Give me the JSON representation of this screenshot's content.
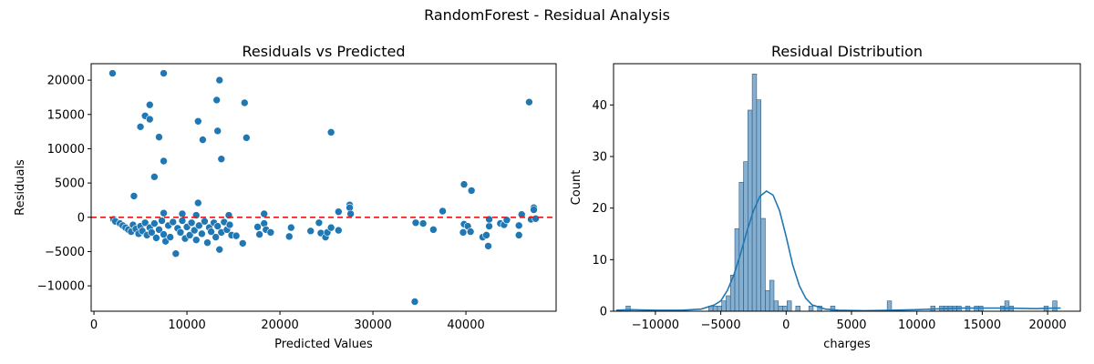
{
  "figure": {
    "suptitle": "RandomForest - Residual Analysis"
  },
  "colors": {
    "point": "#1f77b4",
    "zero_line": "#e41a1c",
    "bar_fill": "#86aecf",
    "kde": "#1f77b4"
  },
  "chart_data": [
    {
      "type": "scatter",
      "title": "Residuals vs Predicted",
      "xlabel": "Predicted Values",
      "ylabel": "Residuals",
      "xlim": [
        -300,
        49700
      ],
      "ylim": [
        -13700,
        22400
      ],
      "xticks": [
        0,
        10000,
        20000,
        30000,
        40000
      ],
      "xtick_labels": [
        "0",
        "10000",
        "20000",
        "30000",
        "40000"
      ],
      "yticks": [
        -10000,
        -5000,
        0,
        5000,
        10000,
        15000,
        20000
      ],
      "ytick_labels": [
        "−10000",
        "−5000",
        "0",
        "5000",
        "10000",
        "15000",
        "20000"
      ],
      "reference_line": {
        "y": 0,
        "style": "dashed"
      },
      "points": [
        [
          2000,
          21000
        ],
        [
          7500,
          21000
        ],
        [
          13500,
          20000
        ],
        [
          13200,
          17100
        ],
        [
          6000,
          16400
        ],
        [
          16200,
          16700
        ],
        [
          46800,
          16800
        ],
        [
          5500,
          14800
        ],
        [
          6000,
          14300
        ],
        [
          11200,
          14000
        ],
        [
          5000,
          13200
        ],
        [
          13300,
          12600
        ],
        [
          25500,
          12400
        ],
        [
          7000,
          11700
        ],
        [
          16400,
          11600
        ],
        [
          11700,
          11300
        ],
        [
          13700,
          8500
        ],
        [
          7500,
          8200
        ],
        [
          6500,
          5900
        ],
        [
          4300,
          3100
        ],
        [
          39800,
          4800
        ],
        [
          40600,
          3900
        ],
        [
          11200,
          2100
        ],
        [
          27500,
          1800
        ],
        [
          27500,
          1400
        ],
        [
          47300,
          1400
        ],
        [
          47300,
          1100
        ],
        [
          37500,
          900
        ],
        [
          26300,
          800
        ],
        [
          18300,
          500
        ],
        [
          27600,
          500
        ],
        [
          46000,
          400
        ],
        [
          7500,
          600
        ],
        [
          9500,
          500
        ],
        [
          11000,
          300
        ],
        [
          14500,
          300
        ],
        [
          2100,
          -300
        ],
        [
          2300,
          -600
        ],
        [
          2800,
          -900
        ],
        [
          3100,
          -1200
        ],
        [
          3400,
          -1500
        ],
        [
          3700,
          -1800
        ],
        [
          4000,
          -2100
        ],
        [
          4200,
          -1100
        ],
        [
          4500,
          -1700
        ],
        [
          4800,
          -2400
        ],
        [
          5000,
          -1300
        ],
        [
          5200,
          -2000
        ],
        [
          5500,
          -800
        ],
        [
          5700,
          -2600
        ],
        [
          6000,
          -1500
        ],
        [
          6200,
          -2200
        ],
        [
          6500,
          -900
        ],
        [
          6700,
          -3000
        ],
        [
          7000,
          -1800
        ],
        [
          7300,
          -500
        ],
        [
          7500,
          -2500
        ],
        [
          7700,
          -3500
        ],
        [
          8000,
          -1200
        ],
        [
          8200,
          -2900
        ],
        [
          8500,
          -700
        ],
        [
          8800,
          -5300
        ],
        [
          9000,
          -1600
        ],
        [
          9300,
          -2200
        ],
        [
          9500,
          -500
        ],
        [
          9800,
          -3100
        ],
        [
          10000,
          -1400
        ],
        [
          10300,
          -2600
        ],
        [
          10500,
          -800
        ],
        [
          10800,
          -1900
        ],
        [
          11000,
          -3300
        ],
        [
          11300,
          -1200
        ],
        [
          11600,
          -2400
        ],
        [
          11900,
          -600
        ],
        [
          12200,
          -3700
        ],
        [
          12400,
          -1500
        ],
        [
          12600,
          -2100
        ],
        [
          12900,
          -800
        ],
        [
          13100,
          -2900
        ],
        [
          13300,
          -1300
        ],
        [
          13500,
          -4700
        ],
        [
          13700,
          -2200
        ],
        [
          14000,
          -700
        ],
        [
          14300,
          -1800
        ],
        [
          14600,
          -1100
        ],
        [
          14800,
          -2600
        ],
        [
          15300,
          -2700
        ],
        [
          16000,
          -3800
        ],
        [
          17600,
          -1400
        ],
        [
          17800,
          -2500
        ],
        [
          18300,
          -900
        ],
        [
          18500,
          -1800
        ],
        [
          19000,
          -2200
        ],
        [
          21000,
          -2800
        ],
        [
          21200,
          -1500
        ],
        [
          23300,
          -2000
        ],
        [
          24200,
          -800
        ],
        [
          24400,
          -2300
        ],
        [
          24900,
          -2900
        ],
        [
          25100,
          -2200
        ],
        [
          25500,
          -1500
        ],
        [
          26300,
          -1900
        ],
        [
          34500,
          -12300
        ],
        [
          34600,
          -800
        ],
        [
          35400,
          -900
        ],
        [
          36500,
          -1800
        ],
        [
          39700,
          -2200
        ],
        [
          39800,
          -1000
        ],
        [
          40200,
          -1300
        ],
        [
          40500,
          -2100
        ],
        [
          41800,
          -2900
        ],
        [
          42200,
          -2600
        ],
        [
          42400,
          -4200
        ],
        [
          42500,
          -1300
        ],
        [
          42500,
          -300
        ],
        [
          43700,
          -900
        ],
        [
          44100,
          -1100
        ],
        [
          44400,
          -400
        ],
        [
          45700,
          -2600
        ],
        [
          45700,
          -1200
        ],
        [
          47000,
          -300
        ],
        [
          47500,
          -200
        ]
      ]
    },
    {
      "type": "histogram",
      "title": "Residual Distribution",
      "xlabel": "charges",
      "ylabel": "Count",
      "xlim": [
        -13200,
        22500
      ],
      "ylim": [
        0,
        48
      ],
      "xticks": [
        -10000,
        -5000,
        0,
        5000,
        10000,
        15000,
        20000
      ],
      "xtick_labels": [
        "−10000",
        "−5000",
        "0",
        "5000",
        "10000",
        "15000",
        "20000"
      ],
      "yticks": [
        0,
        10,
        20,
        30,
        40
      ],
      "ytick_labels": [
        "0",
        "10",
        "20",
        "30",
        "40"
      ],
      "bin_start": -12250,
      "bin_width": 333,
      "counts": [
        1,
        0,
        0,
        0,
        0,
        0,
        0,
        0,
        0,
        0,
        0,
        0,
        0,
        0,
        0,
        0,
        0,
        0,
        0,
        1,
        1,
        1,
        2,
        3,
        7,
        16,
        25,
        29,
        39,
        46,
        41,
        18,
        4,
        6,
        2,
        1,
        1,
        2,
        0,
        1,
        0,
        0,
        1,
        0,
        1,
        0,
        0,
        1,
        0,
        0,
        0,
        0,
        0,
        0,
        0,
        0,
        0,
        0,
        0,
        0,
        2,
        0,
        0,
        0,
        0,
        0,
        0,
        0,
        0,
        0,
        1,
        0,
        1,
        1,
        1,
        1,
        1,
        0,
        1,
        0,
        1,
        1,
        0,
        0,
        0,
        0,
        1,
        2,
        1,
        0,
        0,
        0,
        0,
        0,
        0,
        0,
        1,
        0,
        2
      ],
      "kde": [
        [
          -13000,
          0.2
        ],
        [
          -12000,
          0.3
        ],
        [
          -10000,
          0.2
        ],
        [
          -8000,
          0.2
        ],
        [
          -6500,
          0.4
        ],
        [
          -5500,
          1.2
        ],
        [
          -5000,
          2.0
        ],
        [
          -4500,
          4.0
        ],
        [
          -4000,
          7.0
        ],
        [
          -3500,
          11.0
        ],
        [
          -3000,
          15.5
        ],
        [
          -2500,
          19.5
        ],
        [
          -2000,
          22.3
        ],
        [
          -1500,
          23.3
        ],
        [
          -1000,
          22.5
        ],
        [
          -500,
          19.5
        ],
        [
          0,
          14.5
        ],
        [
          500,
          9.0
        ],
        [
          1000,
          5.0
        ],
        [
          1500,
          2.5
        ],
        [
          2000,
          1.2
        ],
        [
          3000,
          0.4
        ],
        [
          4000,
          0.2
        ],
        [
          6000,
          0.1
        ],
        [
          8000,
          0.2
        ],
        [
          10000,
          0.3
        ],
        [
          12000,
          0.5
        ],
        [
          13500,
          0.6
        ],
        [
          15000,
          0.6
        ],
        [
          17000,
          0.6
        ],
        [
          19000,
          0.5
        ],
        [
          20500,
          0.6
        ],
        [
          21000,
          0.6
        ]
      ]
    }
  ]
}
